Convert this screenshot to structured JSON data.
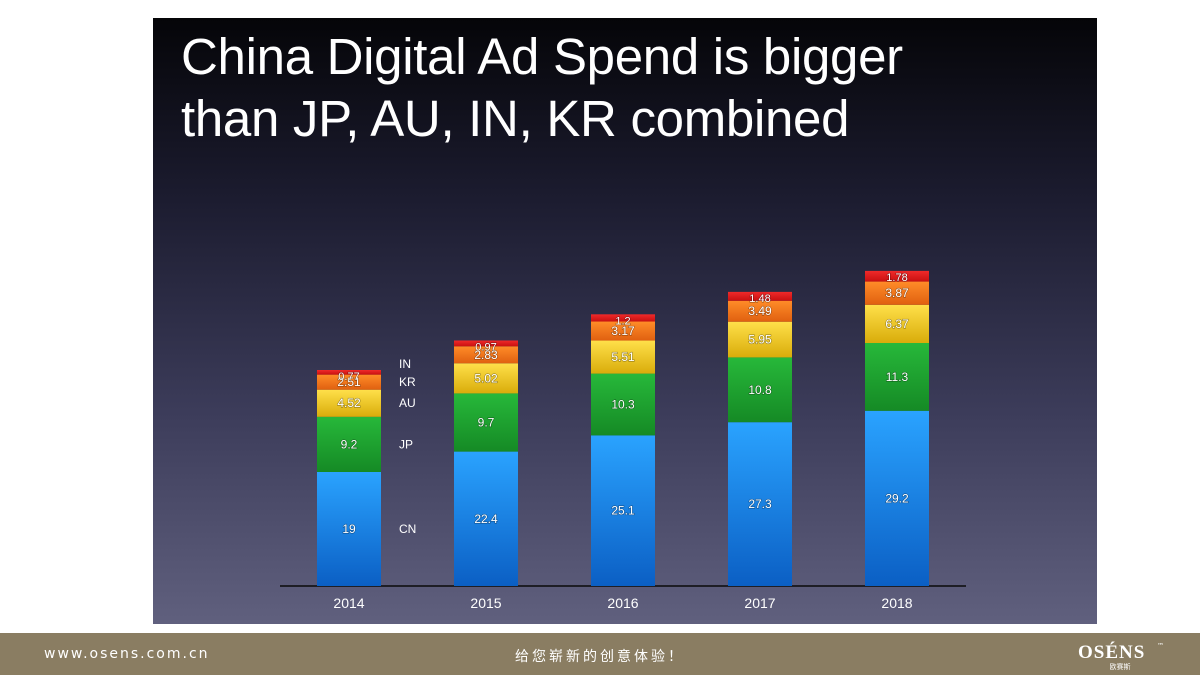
{
  "slide": {
    "title_lines": [
      "China Digital Ad Spend is bigger",
      "than JP, AU, IN, KR combined"
    ]
  },
  "chart_data": {
    "type": "bar",
    "stacked": true,
    "categories": [
      "2014",
      "2015",
      "2016",
      "2017",
      "2018"
    ],
    "series": [
      {
        "name": "CN",
        "color": "#1a82e0",
        "values": [
          19,
          22.4,
          25.1,
          27.3,
          29.2
        ]
      },
      {
        "name": "JP",
        "color": "#1c9e2e",
        "values": [
          9.2,
          9.7,
          10.3,
          10.8,
          11.3
        ]
      },
      {
        "name": "AU",
        "color": "#f2cc12",
        "values": [
          4.52,
          5.02,
          5.51,
          5.95,
          6.37
        ]
      },
      {
        "name": "KR",
        "color": "#f07818",
        "values": [
          2.51,
          2.83,
          3.17,
          3.49,
          3.87
        ]
      },
      {
        "name": "IN",
        "color": "#e31b1b",
        "values": [
          0.77,
          0.97,
          1.2,
          1.48,
          1.78
        ]
      }
    ],
    "data_labels": [
      [
        "19",
        "22.4",
        "25.1",
        "27.3",
        "29.2"
      ],
      [
        "9.2",
        "9.7",
        "10.3",
        "10.8",
        "11.3"
      ],
      [
        "4.52",
        "5.02",
        "5.51",
        "5.95",
        "6.37"
      ],
      [
        "2.51",
        "2.83",
        "3.17",
        "3.49",
        "3.87"
      ],
      [
        "0.77",
        "0.97",
        "1.2",
        "1.48",
        "1.78"
      ]
    ],
    "legend_position": "right of first bar",
    "grid": false,
    "ylim": [
      0,
      52.5
    ],
    "title": "",
    "xlabel": "",
    "ylabel": ""
  },
  "footer": {
    "url": "www.osens.com.cn",
    "slogan": "给您崭新的创意体验！",
    "logo_text": "OSÉNS",
    "logo_tm": "™",
    "logo_sub": "欧赛斯",
    "background": "#8a7d62"
  }
}
